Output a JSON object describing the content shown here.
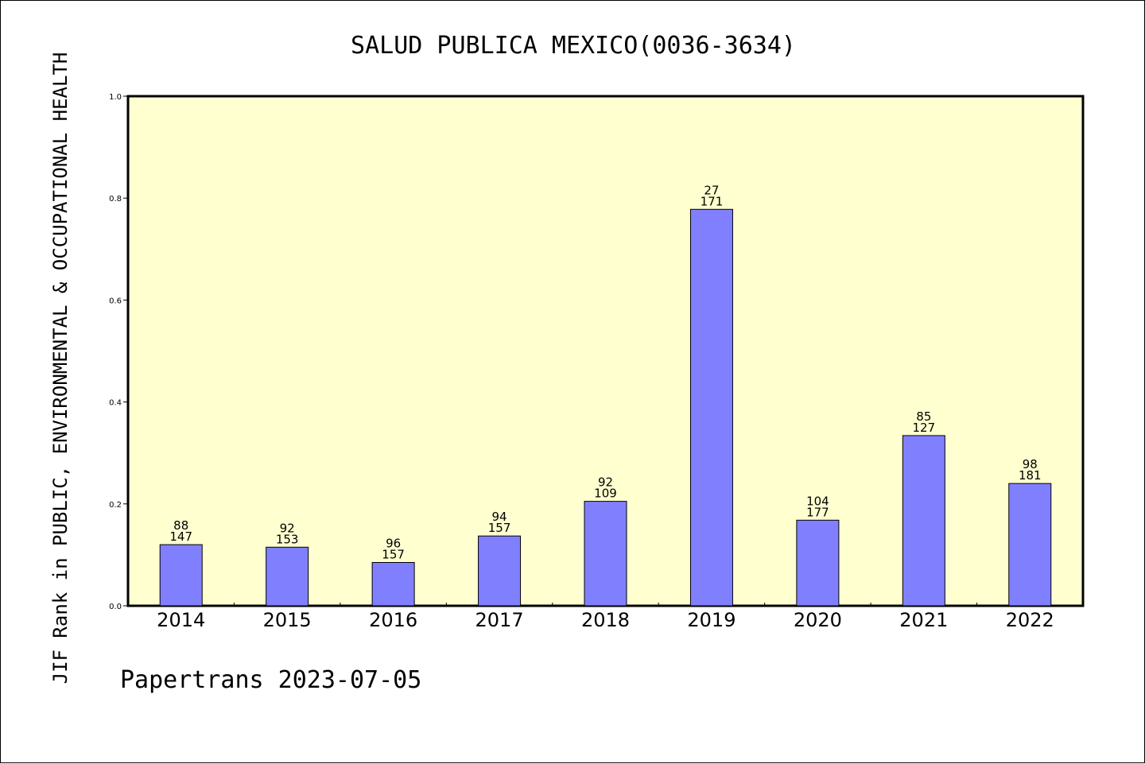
{
  "chart_data": {
    "type": "bar",
    "title": "SALUD PUBLICA MEXICO(0036-3634)",
    "xlabel": "",
    "ylabel": "JIF Rank in PUBLIC, ENVIRONMENTAL & OCCUPATIONAL HEALTH",
    "ylim": [
      0,
      1.0
    ],
    "yticks": [
      "0.0",
      "0.2",
      "0.4",
      "0.6",
      "0.8",
      "1.0"
    ],
    "categories": [
      "2014",
      "2015",
      "2016",
      "2017",
      "2018",
      "2019",
      "2020",
      "2021",
      "2022"
    ],
    "values": [
      0.12,
      0.115,
      0.085,
      0.137,
      0.205,
      0.778,
      0.168,
      0.334,
      0.24
    ],
    "label_rank": [
      "88",
      "92",
      "96",
      "94",
      "92",
      "27",
      "104",
      "85",
      "98"
    ],
    "label_total": [
      "147",
      "153",
      "157",
      "157",
      "109",
      "171",
      "177",
      "127",
      "181"
    ],
    "grid": false,
    "colors": {
      "plot_background": "#ffffd0",
      "bar_fill": "#8080ff",
      "bar_stroke": "#000000"
    }
  },
  "footer": "Papertrans 2023-07-05"
}
